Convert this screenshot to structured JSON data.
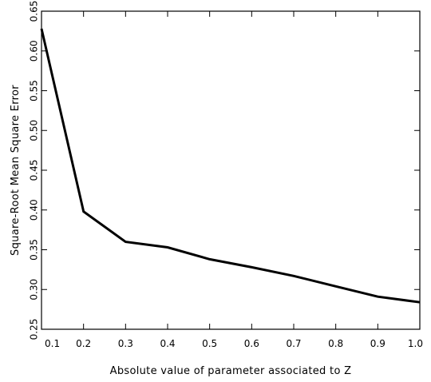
{
  "chart_data": {
    "type": "line",
    "xlabel": "Absolute value of parameter associated to Z",
    "ylabel": "Square-Root Mean Square Error",
    "xlim": [
      0.1,
      1.0
    ],
    "ylim": [
      0.25,
      0.65
    ],
    "xticks": [
      "0.1",
      "0.2",
      "0.3",
      "0.4",
      "0.5",
      "0.6",
      "0.7",
      "0.8",
      "0.9",
      "1.0"
    ],
    "yticks": [
      "0.25",
      "0.30",
      "0.35",
      "0.40",
      "0.45",
      "0.50",
      "0.55",
      "0.60",
      "0.65"
    ],
    "grid": false,
    "series": [
      {
        "x": [
          0.1,
          0.2,
          0.3,
          0.4,
          0.5,
          0.6,
          0.7,
          0.8,
          0.9,
          1.0
        ],
        "y": [
          0.628,
          0.398,
          0.36,
          0.353,
          0.338,
          0.328,
          0.317,
          0.304,
          0.291,
          0.284
        ]
      }
    ]
  }
}
